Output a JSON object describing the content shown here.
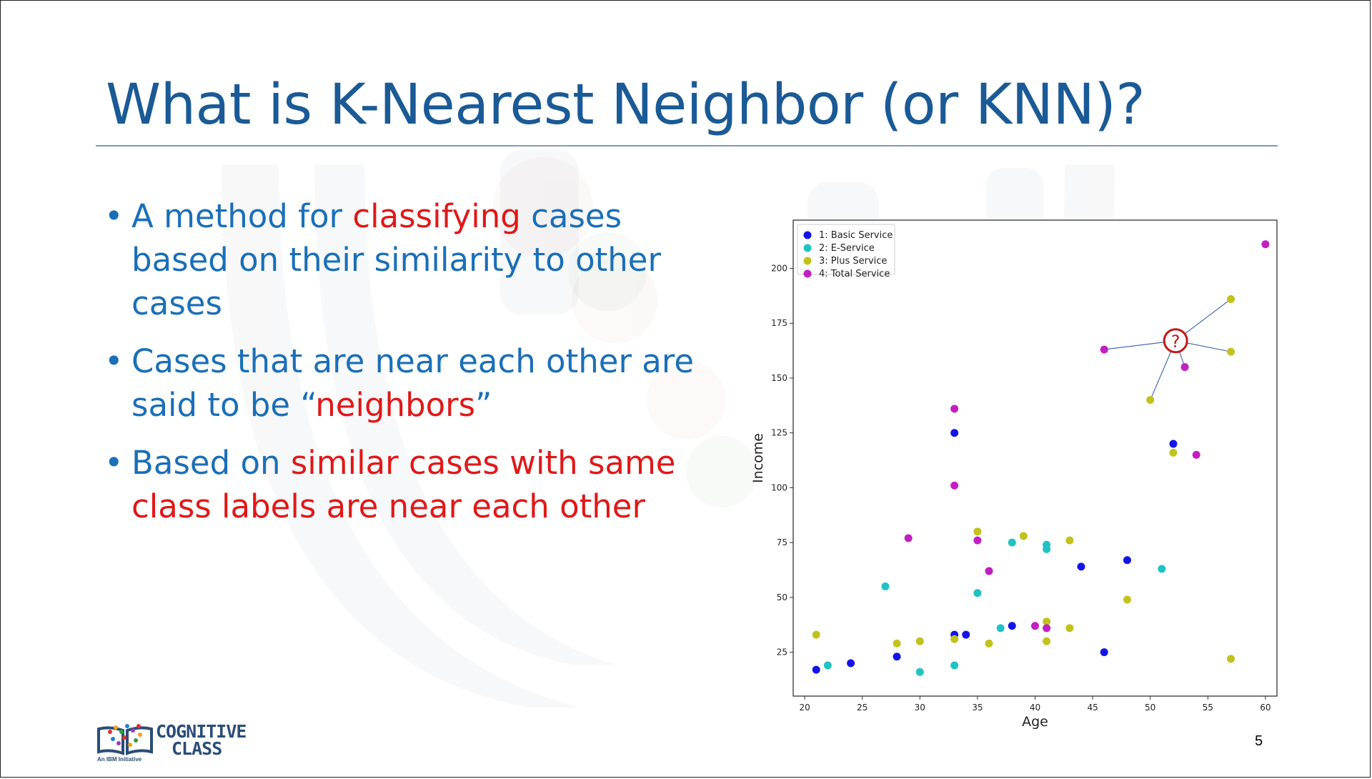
{
  "slide": {
    "title": "What is K-Nearest Neighbor (or KNN)?",
    "page_number": "5"
  },
  "bullets": [
    {
      "parts": [
        {
          "text": "A method for ",
          "highlight": false
        },
        {
          "text": "classifying",
          "highlight": true
        },
        {
          "text": " cases based on their similarity to other cases",
          "highlight": false
        }
      ]
    },
    {
      "parts": [
        {
          "text": "Cases that are near each other are said to be “",
          "highlight": false
        },
        {
          "text": "neighbors",
          "highlight": true
        },
        {
          "text": "”",
          "highlight": false
        }
      ]
    },
    {
      "parts": [
        {
          "text": "Based on ",
          "highlight": false
        },
        {
          "text": "similar cases with same class labels are near each other",
          "highlight": true
        }
      ]
    }
  ],
  "logo": {
    "line1": "COGNITIVE",
    "line2": "CLASS",
    "tagline": "An IBM Initiative"
  },
  "colors": {
    "title": "#1a5a96",
    "bullet_text": "#1a6fb8",
    "highlight": "#e01818"
  },
  "chart_data": {
    "type": "scatter",
    "xlabel": "Age",
    "ylabel": "Income",
    "xlim": [
      19,
      61
    ],
    "ylim": [
      5,
      222
    ],
    "xticks": [
      20,
      25,
      30,
      35,
      40,
      45,
      50,
      55,
      60
    ],
    "yticks": [
      25,
      50,
      75,
      100,
      125,
      150,
      175,
      200
    ],
    "grid": false,
    "legend_position": "top-left",
    "series": [
      {
        "name": "1: Basic Service",
        "color": "#1414e8",
        "points": [
          [
            21,
            17
          ],
          [
            24,
            20
          ],
          [
            28,
            23
          ],
          [
            33,
            33
          ],
          [
            33,
            125
          ],
          [
            34,
            33
          ],
          [
            38,
            37
          ],
          [
            44,
            64
          ],
          [
            46,
            25
          ],
          [
            48,
            67
          ],
          [
            52,
            120
          ]
        ]
      },
      {
        "name": "2: E-Service",
        "color": "#1fc3c3",
        "points": [
          [
            22,
            19
          ],
          [
            27,
            55
          ],
          [
            30,
            16
          ],
          [
            33,
            19
          ],
          [
            35,
            52
          ],
          [
            37,
            36
          ],
          [
            38,
            75
          ],
          [
            41,
            72
          ],
          [
            41,
            74
          ],
          [
            51,
            63
          ]
        ]
      },
      {
        "name": "3: Plus Service",
        "color": "#c2c21c",
        "points": [
          [
            21,
            33
          ],
          [
            28,
            29
          ],
          [
            30,
            30
          ],
          [
            33,
            31
          ],
          [
            35,
            80
          ],
          [
            36,
            29
          ],
          [
            39,
            78
          ],
          [
            41,
            30
          ],
          [
            41,
            39
          ],
          [
            43,
            36
          ],
          [
            43,
            76
          ],
          [
            48,
            49
          ],
          [
            50,
            140
          ],
          [
            52,
            116
          ],
          [
            57,
            22
          ],
          [
            57,
            162
          ],
          [
            57,
            186
          ]
        ]
      },
      {
        "name": "4: Total Service",
        "color": "#c21fc2",
        "points": [
          [
            29,
            77
          ],
          [
            33,
            101
          ],
          [
            33,
            136
          ],
          [
            35,
            76
          ],
          [
            36,
            62
          ],
          [
            40,
            37
          ],
          [
            41,
            36
          ],
          [
            46,
            163
          ],
          [
            53,
            155
          ],
          [
            54,
            115
          ],
          [
            60,
            211
          ]
        ]
      }
    ],
    "annotation": {
      "label": "?",
      "at": [
        52.2,
        167
      ],
      "neighbors": [
        [
          46,
          163
        ],
        [
          50,
          140
        ],
        [
          53,
          155
        ],
        [
          57,
          162
        ],
        [
          57,
          186
        ]
      ]
    }
  }
}
